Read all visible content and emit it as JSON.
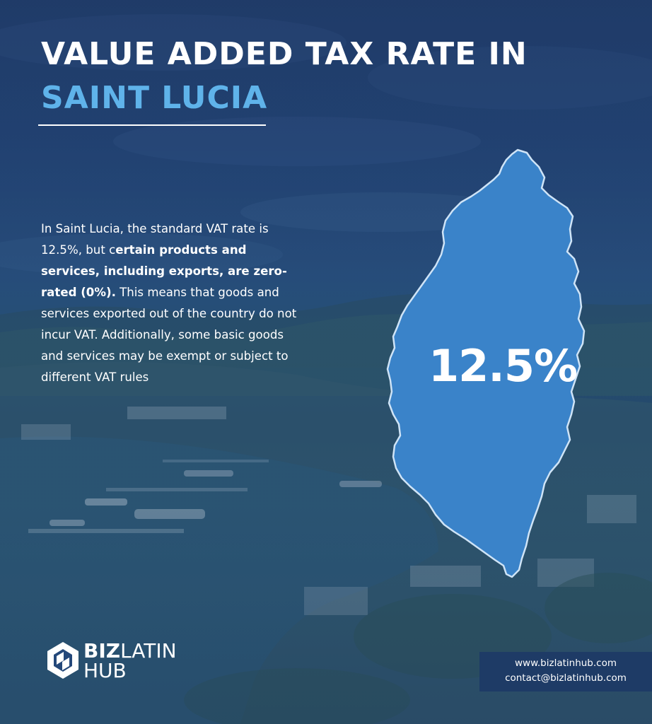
{
  "title": {
    "line1": "VALUE ADDED TAX RATE IN",
    "line2": "SAINT LUCIA"
  },
  "body": {
    "p1": "In Saint Lucia, the standard VAT rate is 12.5%, but c",
    "bold": "ertain products and services, including exports, are zero-rated (0%).",
    "p2": " This means that goods and services exported out of the country do not incur VAT. Additionally, some basic goods and services may be exempt or subject to different VAT rules"
  },
  "map": {
    "rate_label": "12.5%",
    "fill_color": "#3a83c9",
    "outline_color": "#cfe4f7"
  },
  "logo": {
    "part1": "BIZ",
    "part2": "LATIN",
    "part3": "HUB",
    "icon": "bizlatin-hub-logo-icon"
  },
  "contact": {
    "website": "www.bizlatinhub.com",
    "email": "contact@bizlatinhub.com"
  },
  "colors": {
    "accent": "#5fb3ea",
    "background": "#24487a",
    "contact_box": "#1e3b66"
  }
}
